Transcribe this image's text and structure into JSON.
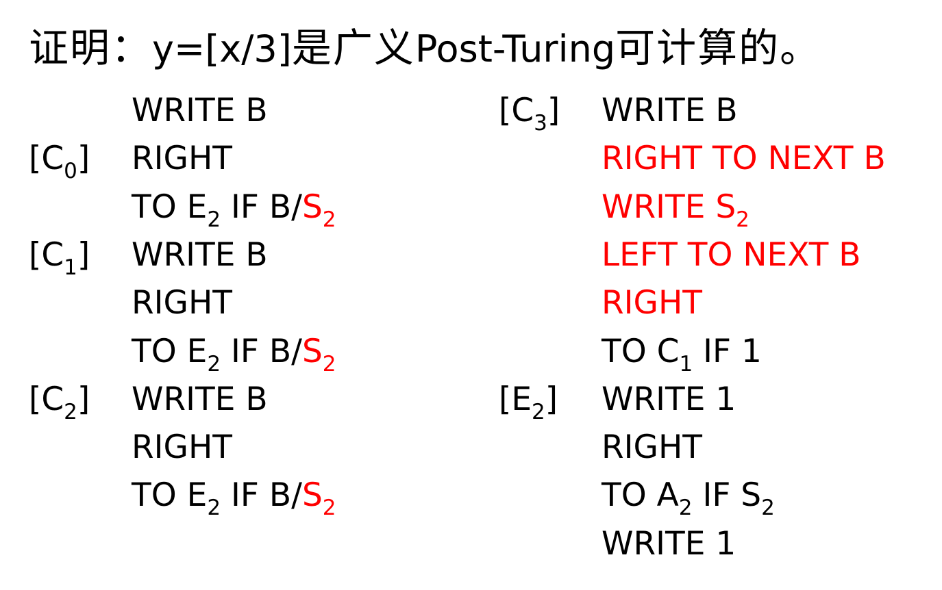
{
  "title": {
    "prefix": "证明：",
    "formula": "y=[x/3]",
    "mid": "是广义",
    "latin": "Post-Turing",
    "suffix": "可计算的。"
  },
  "colors": {
    "text": "#000000",
    "highlight": "#ff0000",
    "background": "#ffffff"
  },
  "program": {
    "left": [
      {
        "label": "",
        "parts": [
          {
            "t": "WRITE B"
          }
        ]
      },
      {
        "label": "[C|0|]",
        "parts": [
          {
            "t": "RIGHT"
          }
        ]
      },
      {
        "label": "",
        "parts": [
          {
            "t": "TO E|2| IF B/"
          },
          {
            "t": "S|2|",
            "red": true
          }
        ]
      },
      {
        "label": "[C|1|]",
        "parts": [
          {
            "t": "WRITE B"
          }
        ]
      },
      {
        "label": "",
        "parts": [
          {
            "t": "RIGHT"
          }
        ]
      },
      {
        "label": "",
        "parts": [
          {
            "t": "TO E|2| IF B/"
          },
          {
            "t": "S|2|",
            "red": true
          }
        ]
      },
      {
        "label": "[C|2|]",
        "parts": [
          {
            "t": "WRITE B"
          }
        ]
      },
      {
        "label": "",
        "parts": [
          {
            "t": "RIGHT"
          }
        ]
      },
      {
        "label": "",
        "parts": [
          {
            "t": "TO E|2| IF B/"
          },
          {
            "t": "S|2|",
            "red": true
          }
        ]
      }
    ],
    "right": [
      {
        "label": "[C|3|]",
        "parts": [
          {
            "t": "WRITE B"
          }
        ]
      },
      {
        "label": "",
        "parts": [
          {
            "t": "RIGHT TO NEXT B",
            "red": true
          }
        ]
      },
      {
        "label": "",
        "parts": [
          {
            "t": "WRITE S|2|",
            "red": true
          }
        ]
      },
      {
        "label": "",
        "parts": [
          {
            "t": "LEFT TO NEXT B",
            "red": true
          }
        ]
      },
      {
        "label": "",
        "parts": [
          {
            "t": "RIGHT",
            "red": true
          }
        ]
      },
      {
        "label": "",
        "parts": [
          {
            "t": "TO C|1| IF 1"
          }
        ]
      },
      {
        "label": "[E|2|]",
        "parts": [
          {
            "t": "WRITE 1"
          }
        ]
      },
      {
        "label": "",
        "parts": [
          {
            "t": "RIGHT"
          }
        ]
      },
      {
        "label": "",
        "parts": [
          {
            "t": "TO A|2| IF S|2|"
          }
        ]
      },
      {
        "label": "",
        "parts": [
          {
            "t": "WRITE 1"
          }
        ]
      }
    ]
  }
}
